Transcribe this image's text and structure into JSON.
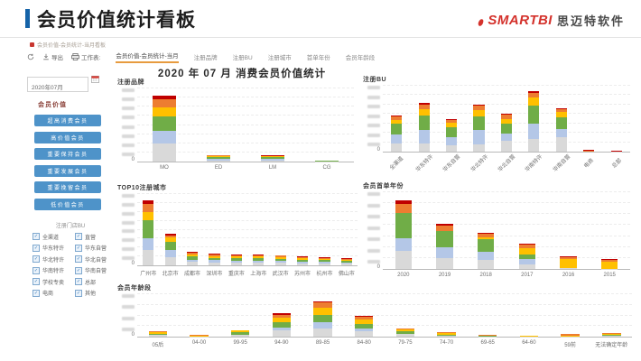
{
  "header": {
    "title": "会员价值统计看板",
    "logo_text": "SMARTBI",
    "logo_suffix": "思迈特软件",
    "accent_color": "#1563a8",
    "logo_color": "#d4322c"
  },
  "breadcrumb": {
    "text": "会员价值-会员统计-当月看板"
  },
  "toolbar": {
    "refresh_label": "",
    "export_label": "导出",
    "worksheet_label": "工作表:",
    "tabs": [
      {
        "label": "会员价值-会员统计-当月",
        "active": true
      },
      {
        "label": "注册品牌",
        "active": false
      },
      {
        "label": "注册BU",
        "active": false
      },
      {
        "label": "注册城市",
        "active": false
      },
      {
        "label": "首单年份",
        "active": false
      },
      {
        "label": "会员年龄段",
        "active": false
      }
    ]
  },
  "main_title": "2020 年 07 月 消费会员价值统计",
  "sidebar": {
    "date_value": "2020年07月",
    "member_value_label": "会员价值",
    "value_buttons": [
      "超高消费会员",
      "高价值会员",
      "重要保持会员",
      "重要发展会员",
      "重要挽留会员",
      "低价值会员"
    ],
    "store_bu_label": "注册门店BU",
    "checkboxes_left": [
      "全渠道",
      "华东特许",
      "华北特许",
      "华南特许",
      "学校专卖",
      "电商"
    ],
    "checkboxes_right": [
      "直营",
      "华东自营",
      "华北自营",
      "华南自营",
      "总部",
      "其他"
    ]
  },
  "segment_colors": {
    "gray": "#d9d9d9",
    "blue": "#b4c7e7",
    "green": "#70ad47",
    "yellow": "#ffc000",
    "orange": "#ed7d31",
    "red": "#c00000"
  },
  "chart_data": [
    {
      "type": "bar",
      "title": "注册品牌",
      "y_zero": "0",
      "ymax": 85,
      "y_ticks": 8,
      "bar_width": "42%",
      "categories": [
        "MO",
        "ED",
        "LM",
        "CG"
      ],
      "series": [
        {
          "color": "#d9d9d9",
          "values": [
            21,
            1.5,
            1.5,
            0.3
          ]
        },
        {
          "color": "#b4c7e7",
          "values": [
            15,
            1.5,
            1.5,
            0.2
          ]
        },
        {
          "color": "#70ad47",
          "values": [
            17,
            2,
            2,
            0.3
          ]
        },
        {
          "color": "#ffc000",
          "values": [
            10,
            1,
            1,
            0.1
          ]
        },
        {
          "color": "#ed7d31",
          "values": [
            9,
            1,
            0.8,
            0.1
          ]
        },
        {
          "color": "#c00000",
          "values": [
            5,
            0.5,
            0.5,
            0
          ]
        }
      ]
    },
    {
      "type": "bar",
      "title": "注册BU",
      "y_zero": "0",
      "ymax": 62,
      "y_ticks": 7,
      "bar_width": "40%",
      "categories": [
        "全渠道",
        "华东特许",
        "华东自营",
        "华北特许",
        "华北自营",
        "华南特许",
        "华南自营",
        "电商",
        "总部"
      ],
      "series": [
        {
          "color": "#d9d9d9",
          "values": [
            8,
            8,
            6,
            7,
            10,
            12,
            14,
            0,
            0.2
          ]
        },
        {
          "color": "#b4c7e7",
          "values": [
            8,
            12,
            8,
            13,
            7,
            14,
            7,
            0,
            0
          ]
        },
        {
          "color": "#70ad47",
          "values": [
            10,
            14,
            9,
            13,
            9,
            17,
            11,
            0,
            0
          ]
        },
        {
          "color": "#ffc000",
          "values": [
            4,
            6,
            4,
            6,
            5,
            8,
            5,
            0,
            0
          ]
        },
        {
          "color": "#ed7d31",
          "values": [
            3,
            4,
            3,
            4,
            4,
            4,
            3,
            0.5,
            0
          ]
        },
        {
          "color": "#c00000",
          "values": [
            1,
            1.5,
            0.8,
            1,
            0.8,
            2,
            1,
            1.5,
            0.3
          ]
        }
      ]
    },
    {
      "type": "bar",
      "title": "TOP10注册城市",
      "y_zero": "0",
      "ymax": 85,
      "y_ticks": 8,
      "bar_width": "50%",
      "categories": [
        "广州市",
        "北京市",
        "成都市",
        "深圳市",
        "重庆市",
        "上海市",
        "武汉市",
        "苏州市",
        "杭州市",
        "佛山市"
      ],
      "series": [
        {
          "color": "#d9d9d9",
          "values": [
            18,
            10,
            4,
            3.5,
            3,
            3,
            3,
            2.5,
            2,
            2
          ]
        },
        {
          "color": "#b4c7e7",
          "values": [
            14,
            8,
            3,
            2.5,
            2.5,
            2.5,
            2,
            2,
            2,
            1.5
          ]
        },
        {
          "color": "#70ad47",
          "values": [
            22,
            10,
            4,
            3,
            3,
            3,
            3,
            2.5,
            2.5,
            2
          ]
        },
        {
          "color": "#ffc000",
          "values": [
            10,
            5,
            2,
            2,
            2,
            2,
            2,
            1.5,
            1.5,
            1.5
          ]
        },
        {
          "color": "#ed7d31",
          "values": [
            9,
            3,
            2,
            2,
            1.5,
            1.5,
            1.5,
            1.5,
            1,
            1
          ]
        },
        {
          "color": "#c00000",
          "values": [
            5,
            1.5,
            1,
            0.8,
            0.8,
            0.8,
            0.8,
            0.5,
            0.5,
            0.5
          ]
        }
      ]
    },
    {
      "type": "bar",
      "title": "会员首单年份",
      "y_zero": "0",
      "ymax": 85,
      "y_ticks": 7,
      "bar_width": "40%",
      "categories": [
        "2020",
        "2019",
        "2018",
        "2017",
        "2016",
        "2015"
      ],
      "series": [
        {
          "color": "#d9d9d9",
          "values": [
            20,
            12,
            10,
            5,
            1,
            0.5
          ]
        },
        {
          "color": "#b4c7e7",
          "values": [
            14,
            12,
            9,
            6,
            0,
            0
          ]
        },
        {
          "color": "#70ad47",
          "values": [
            28,
            18,
            14,
            5,
            0,
            0
          ]
        },
        {
          "color": "#ffc000",
          "values": [
            0,
            0,
            2,
            7,
            10,
            8
          ]
        },
        {
          "color": "#ed7d31",
          "values": [
            10,
            6,
            4,
            4,
            2,
            2
          ]
        },
        {
          "color": "#c00000",
          "values": [
            4,
            2,
            1,
            1,
            1,
            1
          ]
        }
      ]
    },
    {
      "type": "bar",
      "title": "会员年龄段",
      "y_zero": "0",
      "ymax": 50,
      "y_ticks": 4,
      "bar_width": "45%",
      "categories": [
        "05后",
        "04-00",
        "99-95",
        "94-90",
        "89-85",
        "84-80",
        "79-75",
        "74-70",
        "69-65",
        "64-60",
        "59前",
        "无法确定年龄"
      ],
      "series": [
        {
          "color": "#d9d9d9",
          "values": [
            2,
            0.5,
            2,
            7,
            10,
            6,
            3,
            1.5,
            0.5,
            0.3,
            0.5,
            1.5
          ]
        },
        {
          "color": "#b4c7e7",
          "values": [
            0,
            0,
            0,
            4,
            7,
            4,
            0,
            0,
            0,
            0,
            0,
            0
          ]
        },
        {
          "color": "#70ad47",
          "values": [
            1,
            0,
            3,
            6,
            9,
            5,
            3,
            1,
            0.5,
            0,
            0,
            0.5
          ]
        },
        {
          "color": "#ffc000",
          "values": [
            2,
            0.5,
            2,
            5,
            8,
            5,
            3,
            1.5,
            0.5,
            0.4,
            1,
            1
          ]
        },
        {
          "color": "#ed7d31",
          "values": [
            1,
            1,
            1,
            4,
            6,
            4,
            1,
            1,
            0.5,
            0.3,
            1.5,
            1
          ]
        },
        {
          "color": "#c00000",
          "values": [
            0,
            0,
            0,
            2,
            2,
            1,
            0,
            0,
            0,
            0,
            0,
            0
          ]
        }
      ]
    }
  ]
}
